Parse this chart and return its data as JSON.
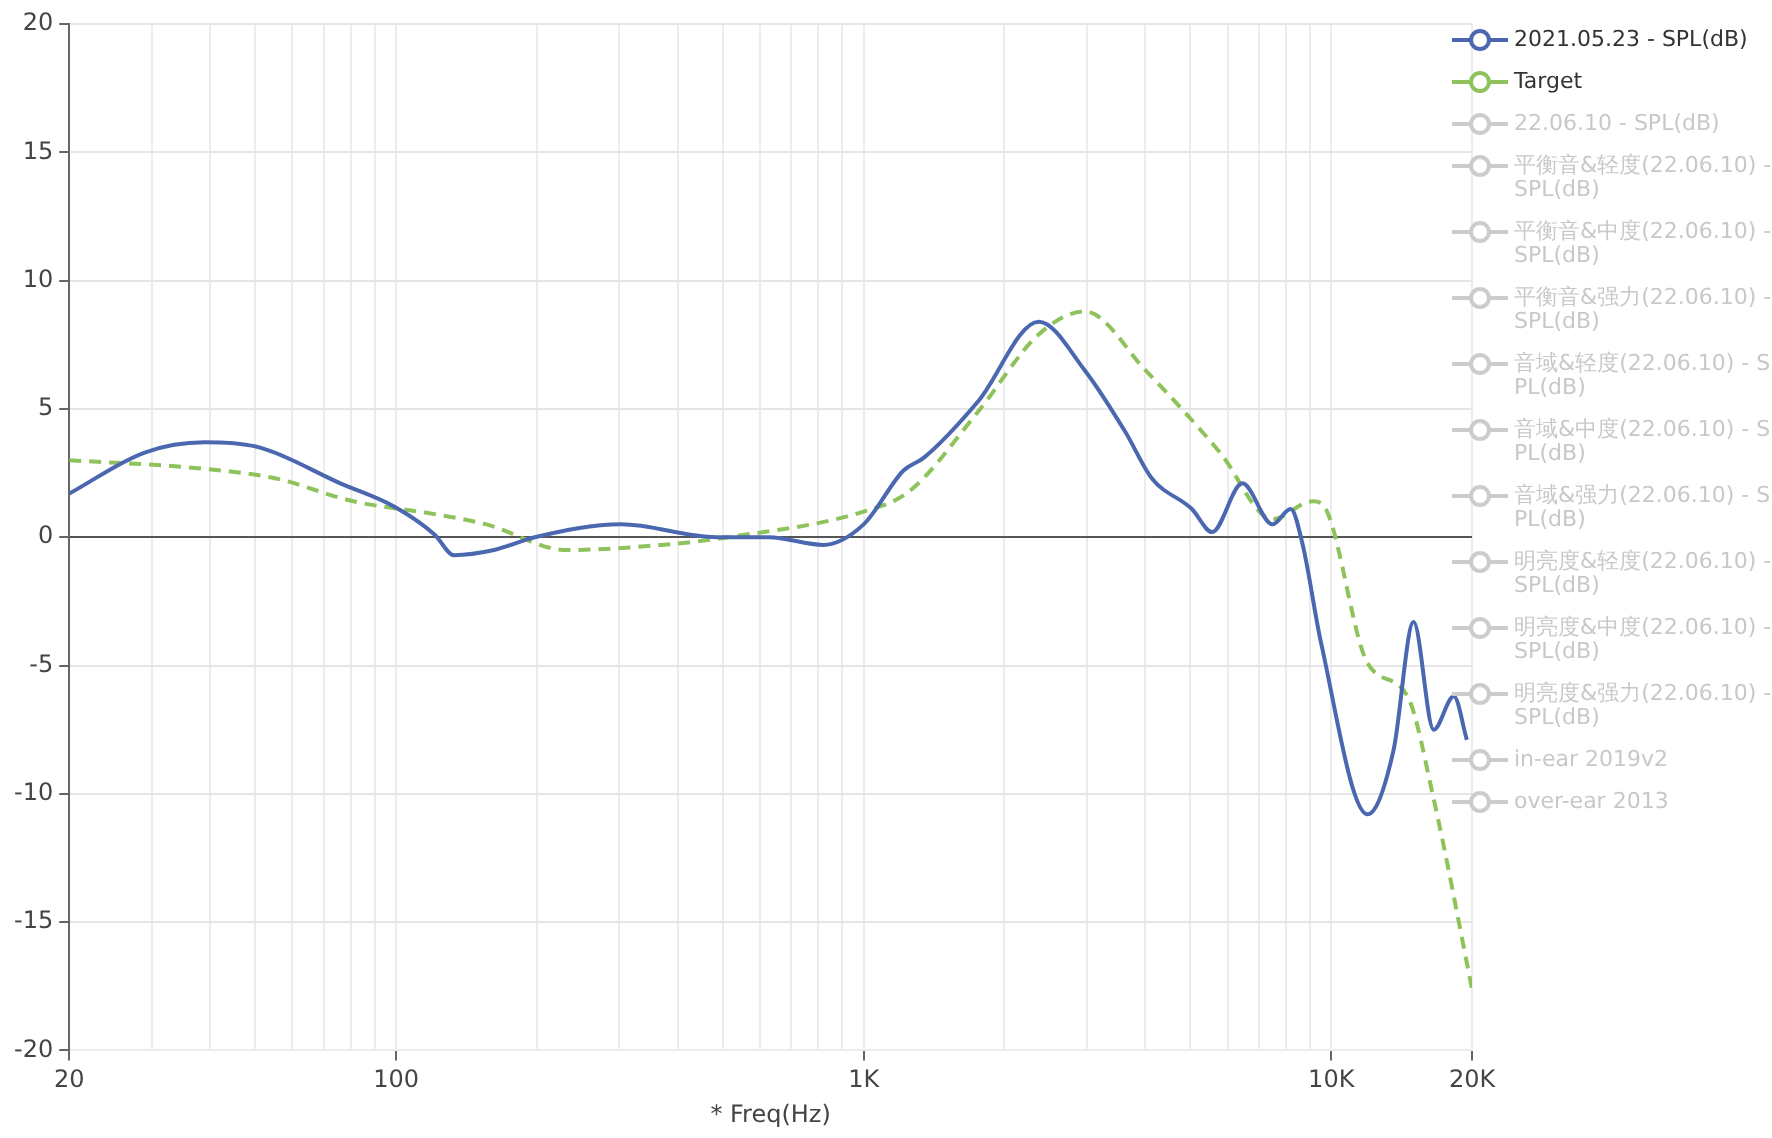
{
  "chart_data": {
    "type": "line",
    "xlabel": "* Freq(Hz)",
    "log": "x",
    "grid": true,
    "legend": "top right",
    "marker": "none",
    "xlim": [
      20,
      20000
    ],
    "xticks": [
      20,
      {
        "value": 30,
        "label": null
      },
      {
        "value": 40,
        "label": null
      },
      {
        "value": 50,
        "label": null
      },
      {
        "value": 60,
        "label": null
      },
      {
        "value": 70,
        "label": null
      },
      {
        "value": 80,
        "label": null
      },
      {
        "value": 90,
        "label": null
      },
      100,
      {
        "value": 200,
        "label": null
      },
      {
        "value": 300,
        "label": null
      },
      {
        "value": 400,
        "label": null
      },
      {
        "value": 500,
        "label": null
      },
      {
        "value": 600,
        "label": null
      },
      {
        "value": 700,
        "label": null
      },
      {
        "value": 800,
        "label": null
      },
      {
        "value": 900,
        "label": null
      },
      {
        "value": 1000,
        "label": "1K"
      },
      {
        "value": 2000,
        "label": null
      },
      {
        "value": 3000,
        "label": null
      },
      {
        "value": 4000,
        "label": null
      },
      {
        "value": 5000,
        "label": null
      },
      {
        "value": 6000,
        "label": null
      },
      {
        "value": 7000,
        "label": null
      },
      {
        "value": 8000,
        "label": null
      },
      {
        "value": 9000,
        "label": null
      },
      {
        "value": 10000,
        "label": "10K"
      },
      {
        "value": 20000,
        "label": "20K"
      }
    ],
    "ylim": [
      -20,
      20
    ],
    "yticks": [
      -20,
      -15,
      -10,
      -5,
      0,
      5,
      10,
      15,
      20
    ],
    "series": [
      {
        "name": "2021.05.23 - SPL(dB)",
        "color": "#4a67b0",
        "line_style": "solid",
        "x": [
          20,
          29,
          39,
          51,
          76,
          99,
          121,
          133,
          162,
          198,
          303,
          484,
          627,
          819,
          1000,
          1217,
          1346,
          1758,
          2368,
          2972,
          3629,
          4131,
          5035,
          5561,
          6455,
          7486,
          8187,
          8690,
          9507,
          11950,
          13590,
          15000,
          16560,
          18290,
          19500
        ],
        "values": [
          1.7,
          3.3,
          3.7,
          3.5,
          2.1,
          1.2,
          0.1,
          -0.7,
          -0.5,
          0,
          0.5,
          0,
          0,
          -0.3,
          0.5,
          2.6,
          3.1,
          5.3,
          8.4,
          6.5,
          4.1,
          2.3,
          1.1,
          0.2,
          2.1,
          0.5,
          1.1,
          -0.3,
          -4.1,
          -10.8,
          -8.3,
          -3.3,
          -7.5,
          -6.2,
          -7.9
        ]
      },
      {
        "name": "Target",
        "color": "#8dc35a",
        "line_style": "dashed",
        "x": [
          20,
          37,
          55,
          81,
          121,
          156,
          232,
          370,
          513,
          1000,
          1254,
          1758,
          2368,
          2972,
          4009,
          5782,
          7486,
          9127,
          9795,
          11950,
          14560,
          16560,
          20000
        ],
        "values": [
          3.0,
          2.7,
          2.3,
          1.4,
          0.9,
          0.5,
          -0.5,
          -0.3,
          0,
          1.0,
          1.8,
          4.9,
          7.9,
          8.8,
          6.5,
          3.3,
          0.7,
          1.4,
          1.0,
          -4.9,
          -6.2,
          -10.2,
          -17.6
        ]
      },
      {
        "name": "22.06.10 - SPL(dB)",
        "color": "#cccccc"
      },
      {
        "name": "平衡音&轻度(22.06.10) - SPL(dB)",
        "color": "#cccccc"
      },
      {
        "name": "平衡音&中度(22.06.10) - SPL(dB)",
        "color": "#cccccc"
      },
      {
        "name": "平衡音&强力(22.06.10) - SPL(dB)",
        "color": "#cccccc"
      },
      {
        "name": "音域&轻度(22.06.10) - SPL(dB)",
        "color": "#cccccc"
      },
      {
        "name": "音域&中度(22.06.10) - SPL(dB)",
        "color": "#cccccc"
      },
      {
        "name": "音域&强力(22.06.10) - SPL(dB)",
        "color": "#cccccc"
      },
      {
        "name": "明亮度&轻度(22.06.10) - SPL(dB)",
        "color": "#cccccc"
      },
      {
        "name": "明亮度&中度(22.06.10) - SPL(dB)",
        "color": "#cccccc"
      },
      {
        "name": "明亮度&强力(22.06.10) - SPL(dB)",
        "color": "#cccccc"
      },
      {
        "name": "in-ear 2019v2",
        "color": "#cccccc"
      },
      {
        "name": "over-ear 2013",
        "color": "#cccccc"
      }
    ]
  }
}
